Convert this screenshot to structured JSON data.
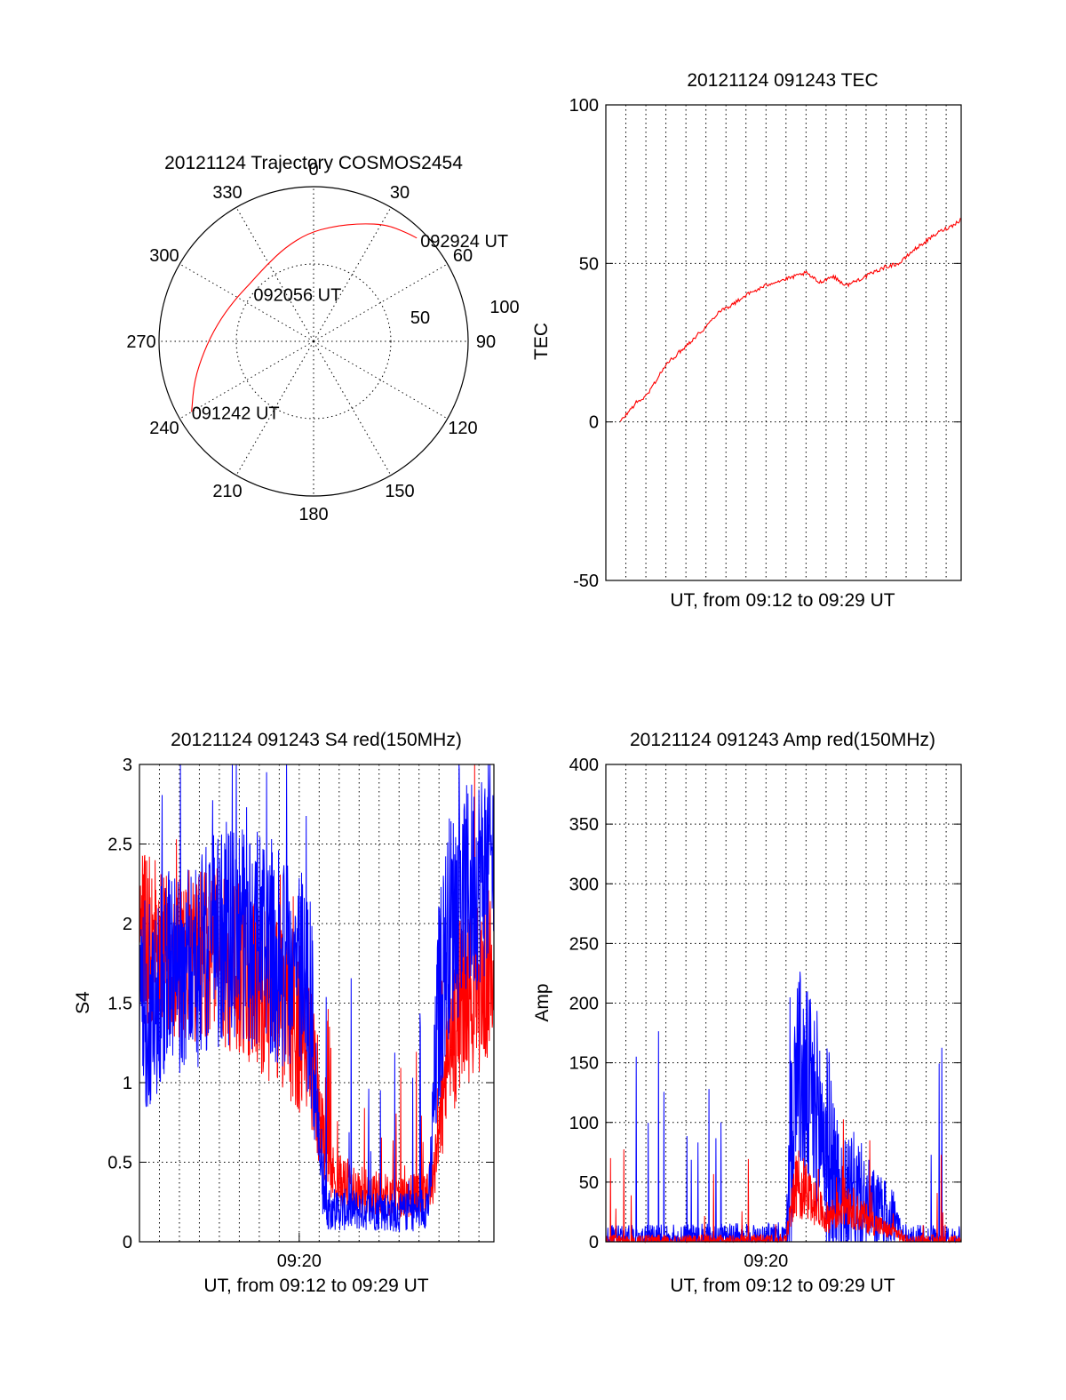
{
  "colors": {
    "red": "#ff0000",
    "blue": "#0000ff",
    "axis": "#000000"
  },
  "chart_data": [
    {
      "type": "scatter",
      "subtype": "polar",
      "title": "20121124 Trajectory COSMOS2454",
      "angle_ticks": [
        "0",
        "30",
        "60",
        "90",
        "120",
        "150",
        "180",
        "210",
        "240",
        "270",
        "300",
        "330"
      ],
      "radial_ticks": [
        "50",
        "100"
      ],
      "elevation_rings": [
        50,
        0
      ],
      "series": [
        {
          "color": "#ff0000",
          "points": [
            {
              "az": 240,
              "el": 8
            },
            {
              "az": 252,
              "el": 17
            },
            {
              "az": 265,
              "el": 26
            },
            {
              "az": 280,
              "el": 33
            },
            {
              "az": 297,
              "el": 38
            },
            {
              "az": 312,
              "el": 40
            },
            {
              "az": 328,
              "el": 38
            },
            {
              "az": 343,
              "el": 33
            },
            {
              "az": 357,
              "el": 27
            },
            {
              "az": 10,
              "el": 22
            },
            {
              "az": 22,
              "el": 16
            },
            {
              "az": 32,
              "el": 10
            },
            {
              "az": 40,
              "el": 7
            },
            {
              "az": 45,
              "el": 5
            }
          ]
        }
      ],
      "annotations": [
        {
          "text": "092924 UT",
          "az": 45,
          "el": 5
        },
        {
          "text": "092056 UT",
          "az": 297,
          "el": 38
        },
        {
          "text": "091242 UT",
          "az": 240,
          "el": 8
        }
      ]
    },
    {
      "type": "line",
      "title": "20121124 091243 TEC",
      "xlabel": "UT, from 09:12 to 09:29 UT",
      "ylabel": "TEC",
      "xlim": [
        "09:12:00",
        "09:29:45"
      ],
      "ylim": [
        -50,
        100
      ],
      "yticks": [
        "-50",
        "0",
        "50",
        "100"
      ],
      "grid": true,
      "series": [
        {
          "color": "#ff0000",
          "x": [
            "09:12:43",
            "09:13:30",
            "09:14:00",
            "09:14:30",
            "09:15:00",
            "09:15:40",
            "09:16:20",
            "09:17:00",
            "09:17:40",
            "09:18:20",
            "09:19:00",
            "09:19:40",
            "09:20:20",
            "09:21:00",
            "09:21:30",
            "09:22:00",
            "09:22:40",
            "09:23:20",
            "09:24:00",
            "09:24:40",
            "09:25:20",
            "09:26:00",
            "09:26:40",
            "09:27:20",
            "09:28:00",
            "09:28:40",
            "09:29:20",
            "09:29:45"
          ],
          "y": [
            0,
            6,
            8,
            13,
            18,
            22,
            26,
            30,
            35,
            37,
            40,
            42,
            44,
            45,
            46,
            47,
            44,
            46,
            43,
            45,
            47,
            49,
            50,
            54,
            57,
            60,
            62,
            64
          ]
        }
      ]
    },
    {
      "type": "line",
      "title": "20121124 091243 S4 red(150MHz)",
      "xlabel": "UT, from 09:12 to 09:29 UT",
      "ylabel": "S4",
      "xlim": [
        "09:12:00",
        "09:29:45"
      ],
      "ylim": [
        0,
        3
      ],
      "yticks": [
        "0",
        "0.5",
        "1",
        "1.5",
        "2",
        "2.5",
        "3"
      ],
      "xticks": [
        "09:20"
      ],
      "grid": true,
      "series": [
        {
          "color": "#ff0000",
          "x": [
            "09:12:00",
            "09:13:00",
            "09:14:00",
            "09:15:00",
            "09:16:00",
            "09:17:00",
            "09:18:00",
            "09:19:00",
            "09:20:00",
            "09:20:40",
            "09:21:00",
            "09:21:30",
            "09:22:00",
            "09:23:00",
            "09:24:00",
            "09:25:00",
            "09:26:00",
            "09:26:40",
            "09:27:00",
            "09:27:30",
            "09:28:00",
            "09:29:00",
            "09:29:45"
          ],
          "y": [
            1.9,
            1.9,
            1.8,
            1.8,
            1.8,
            1.7,
            1.6,
            1.5,
            1.35,
            1.1,
            0.8,
            0.45,
            0.38,
            0.33,
            0.3,
            0.28,
            0.3,
            0.4,
            0.7,
            1.2,
            1.5,
            1.6,
            1.7
          ],
          "spread": 0.55
        },
        {
          "color": "#0000ff",
          "x": [
            "09:12:00",
            "09:13:00",
            "09:14:00",
            "09:15:00",
            "09:16:00",
            "09:17:00",
            "09:18:00",
            "09:19:00",
            "09:20:00",
            "09:20:30",
            "09:21:00",
            "09:21:20",
            "09:22:00",
            "09:23:00",
            "09:24:00",
            "09:25:00",
            "09:26:00",
            "09:26:30",
            "09:27:00",
            "09:27:30",
            "09:28:00",
            "09:29:00",
            "09:29:45"
          ],
          "y": [
            1.5,
            1.6,
            1.7,
            1.8,
            1.9,
            1.9,
            1.9,
            1.8,
            1.75,
            1.6,
            0.6,
            0.22,
            0.2,
            0.2,
            0.2,
            0.18,
            0.2,
            0.25,
            1.5,
            2.0,
            2.1,
            2.3,
            2.4
          ],
          "spread": 0.7
        }
      ]
    },
    {
      "type": "line",
      "title": "20121124 091243 Amp red(150MHz)",
      "xlabel": "UT, from 09:12 to 09:29 UT",
      "ylabel": "Amp",
      "xlim": [
        "09:12:00",
        "09:29:45"
      ],
      "ylim": [
        0,
        400
      ],
      "yticks": [
        "0",
        "50",
        "100",
        "150",
        "200",
        "250",
        "300",
        "350",
        "400"
      ],
      "xticks": [
        "09:20"
      ],
      "grid": true,
      "series": [
        {
          "color": "#0000ff",
          "x": [
            "09:12:00",
            "09:15:00",
            "09:18:00",
            "09:21:00",
            "09:21:20",
            "09:21:30",
            "09:21:50",
            "09:22:30",
            "09:23:00",
            "09:23:30",
            "09:24:00",
            "09:24:30",
            "09:25:00",
            "09:25:30",
            "09:26:00",
            "09:26:20",
            "09:26:40",
            "09:27:00",
            "09:29:45"
          ],
          "y": [
            1,
            1,
            2,
            3,
            100,
            160,
            130,
            110,
            80,
            50,
            35,
            40,
            30,
            25,
            20,
            20,
            10,
            1,
            0
          ],
          "spread": 90
        },
        {
          "color": "#ff0000",
          "x": [
            "09:12:00",
            "09:15:00",
            "09:18:00",
            "09:21:00",
            "09:21:20",
            "09:21:40",
            "09:22:30",
            "09:23:00",
            "09:23:30",
            "09:24:00",
            "09:24:30",
            "09:25:00",
            "09:25:30",
            "09:26:00",
            "09:26:30",
            "09:27:00",
            "09:29:45"
          ],
          "y": [
            0,
            0,
            0,
            1,
            40,
            50,
            30,
            20,
            25,
            35,
            25,
            20,
            15,
            10,
            8,
            0,
            0
          ],
          "spread": 40
        }
      ]
    }
  ]
}
